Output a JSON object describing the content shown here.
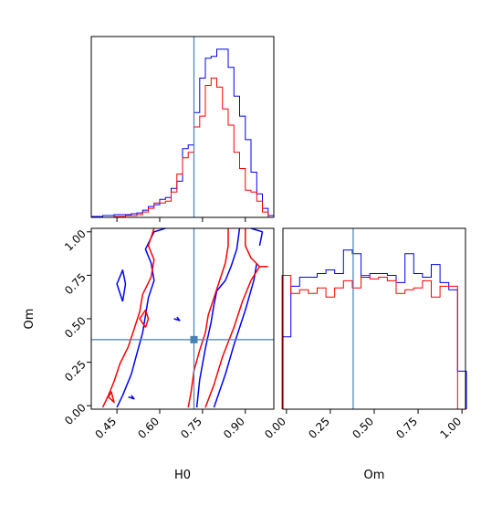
{
  "figure": {
    "type": "corner-plot",
    "parameters": [
      "H0",
      "Om"
    ],
    "truth": {
      "H0": 0.72,
      "Om": 0.38
    },
    "colors": {
      "series_a": "#0000ff",
      "series_b": "#ff0000",
      "truth": "#4682b4"
    }
  },
  "chart_data": [
    {
      "type": "histogram",
      "panel": "H0-marginal",
      "xlabel": "",
      "xlim": [
        0.36,
        1.0
      ],
      "bins": [
        0.37,
        0.39,
        0.41,
        0.43,
        0.45,
        0.47,
        0.49,
        0.51,
        0.53,
        0.55,
        0.57,
        0.59,
        0.61,
        0.63,
        0.65,
        0.67,
        0.69,
        0.71,
        0.73,
        0.75,
        0.77,
        0.79,
        0.81,
        0.83,
        0.85,
        0.87,
        0.89,
        0.91,
        0.93,
        0.95,
        0.97,
        0.99
      ],
      "series": [
        {
          "color": "#0000ff",
          "values": [
            0.005,
            0.005,
            0.01,
            0.01,
            0.015,
            0.015,
            0.015,
            0.02,
            0.025,
            0.04,
            0.06,
            0.07,
            0.1,
            0.11,
            0.16,
            0.2,
            0.38,
            0.4,
            0.58,
            0.77,
            0.88,
            0.89,
            0.93,
            0.93,
            0.83,
            0.67,
            0.56,
            0.43,
            0.25,
            0.13,
            0.05,
            0.01
          ]
        },
        {
          "color": "#ff0000",
          "values": [
            0.0,
            0.0,
            0.0,
            0.0,
            0.005,
            0.005,
            0.01,
            0.01,
            0.015,
            0.03,
            0.05,
            0.08,
            0.08,
            0.09,
            0.14,
            0.24,
            0.33,
            0.36,
            0.5,
            0.56,
            0.73,
            0.77,
            0.72,
            0.6,
            0.51,
            0.36,
            0.27,
            0.15,
            0.14,
            0.09,
            0.03,
            0.0
          ]
        }
      ]
    },
    {
      "type": "histogram",
      "panel": "Om-marginal",
      "xlabel": "Om",
      "xlim": [
        -0.02,
        1.02
      ],
      "x_ticks": [
        "0.00",
        "0.25",
        "0.50",
        "0.75",
        "1.00"
      ],
      "x_tick_values": [
        0.0,
        0.25,
        0.5,
        0.75,
        1.0
      ],
      "bins": [
        0.0,
        0.05,
        0.1,
        0.15,
        0.2,
        0.25,
        0.3,
        0.35,
        0.4,
        0.45,
        0.5,
        0.55,
        0.6,
        0.65,
        0.7,
        0.75,
        0.8,
        0.85,
        0.9,
        0.95,
        1.0
      ],
      "series": [
        {
          "color": "#0000ff",
          "values": [
            0.4,
            0.68,
            0.73,
            0.73,
            0.75,
            0.77,
            0.75,
            0.88,
            0.86,
            0.73,
            0.75,
            0.75,
            0.74,
            0.7,
            0.86,
            0.75,
            0.73,
            0.8,
            0.7,
            0.66,
            0.21
          ]
        },
        {
          "color": "#ff0000",
          "values": [
            0.74,
            0.64,
            0.66,
            0.64,
            0.67,
            0.62,
            0.67,
            0.71,
            0.67,
            0.74,
            0.72,
            0.73,
            0.71,
            0.64,
            0.66,
            0.67,
            0.71,
            0.62,
            0.68,
            0.68,
            0.0
          ]
        }
      ]
    },
    {
      "type": "contour",
      "panel": "H0-vs-Om",
      "xlabel": "H0",
      "ylabel": "Om",
      "xlim": [
        0.36,
        1.0
      ],
      "ylim": [
        -0.02,
        1.02
      ],
      "x_ticks": [
        "0.45",
        "0.60",
        "0.75",
        "0.90"
      ],
      "x_tick_values": [
        0.45,
        0.6,
        0.75,
        0.9
      ],
      "y_ticks": [
        "0.00",
        "0.25",
        "0.50",
        "0.75",
        "1.00"
      ],
      "y_tick_values": [
        0.0,
        0.25,
        0.5,
        0.75,
        1.0
      ],
      "series": [
        {
          "color": "#0000ff",
          "contours": [
            [
              [
                0.62,
                1.02
              ],
              [
                0.58,
                1.0
              ],
              [
                0.55,
                0.9
              ],
              [
                0.57,
                0.82
              ],
              [
                0.58,
                0.72
              ],
              [
                0.56,
                0.62
              ],
              [
                0.55,
                0.52
              ],
              [
                0.54,
                0.42
              ],
              [
                0.52,
                0.3
              ],
              [
                0.5,
                0.18
              ],
              [
                0.47,
                0.06
              ],
              [
                0.45,
                -0.01
              ]
            ],
            [
              [
                0.47,
                0.6
              ],
              [
                0.45,
                0.7
              ],
              [
                0.47,
                0.78
              ],
              [
                0.48,
                0.7
              ],
              [
                0.47,
                0.6
              ]
            ],
            [
              [
                0.49,
                0.05
              ],
              [
                0.51,
                0.04
              ],
              [
                0.5,
                0.06
              ]
            ],
            [
              [
                0.79,
                -0.01
              ],
              [
                0.83,
                0.18
              ],
              [
                0.86,
                0.35
              ],
              [
                0.9,
                0.55
              ],
              [
                0.93,
                0.72
              ],
              [
                0.94,
                0.82
              ]
            ],
            [
              [
                0.73,
                -0.01
              ],
              [
                0.74,
                0.15
              ],
              [
                0.76,
                0.33
              ],
              [
                0.78,
                0.48
              ],
              [
                0.79,
                0.58
              ],
              [
                0.8,
                0.66
              ],
              [
                0.83,
                0.72
              ],
              [
                0.85,
                0.8
              ],
              [
                0.87,
                0.9
              ],
              [
                0.88,
                1.02
              ]
            ],
            [
              [
                0.95,
                0.92
              ],
              [
                0.96,
                1.0
              ],
              [
                0.92,
                1.02
              ]
            ],
            [
              [
                0.65,
                0.5
              ],
              [
                0.67,
                0.49
              ],
              [
                0.66,
                0.51
              ]
            ]
          ]
        },
        {
          "color": "#ff0000",
          "contours": [
            [
              [
                0.7,
                -0.01
              ],
              [
                0.71,
                0.08
              ],
              [
                0.72,
                0.2
              ],
              [
                0.74,
                0.32
              ],
              [
                0.76,
                0.42
              ],
              [
                0.77,
                0.52
              ],
              [
                0.79,
                0.62
              ],
              [
                0.81,
                0.72
              ],
              [
                0.83,
                0.82
              ],
              [
                0.84,
                0.92
              ],
              [
                0.84,
                1.02
              ]
            ],
            [
              [
                0.76,
                -0.01
              ],
              [
                0.79,
                0.12
              ],
              [
                0.82,
                0.28
              ],
              [
                0.86,
                0.45
              ],
              [
                0.89,
                0.6
              ],
              [
                0.92,
                0.72
              ],
              [
                0.95,
                0.8
              ],
              [
                0.98,
                0.8
              ]
            ],
            [
              [
                0.58,
                1.02
              ],
              [
                0.56,
                0.92
              ],
              [
                0.58,
                0.84
              ],
              [
                0.57,
                0.74
              ],
              [
                0.54,
                0.64
              ],
              [
                0.53,
                0.54
              ],
              [
                0.51,
                0.44
              ],
              [
                0.49,
                0.34
              ],
              [
                0.46,
                0.24
              ],
              [
                0.44,
                0.14
              ],
              [
                0.42,
                0.06
              ],
              [
                0.4,
                -0.01
              ]
            ],
            [
              [
                0.55,
                0.45
              ],
              [
                0.53,
                0.5
              ],
              [
                0.55,
                0.55
              ],
              [
                0.56,
                0.5
              ],
              [
                0.55,
                0.45
              ]
            ],
            [
              [
                0.42,
                0.05
              ],
              [
                0.44,
                0.02
              ],
              [
                0.43,
                0.08
              ],
              [
                0.42,
                0.05
              ]
            ],
            [
              [
                0.9,
                1.02
              ],
              [
                0.9,
                0.92
              ],
              [
                0.92,
                0.85
              ],
              [
                0.95,
                0.8
              ]
            ]
          ]
        }
      ]
    }
  ]
}
